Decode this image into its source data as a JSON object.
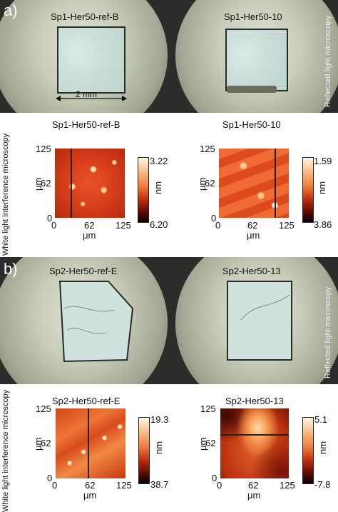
{
  "panel_a": {
    "letter": "a)",
    "micro_left_title": "Sp1-Her50-ref-B",
    "micro_right_title": "Sp1-Her50-10",
    "scale_label": "2 mm",
    "reflected_label": "Reflected light microscopy",
    "wli_label": "White light interference microscopy",
    "heat_left": {
      "title": "Sp1-Her50-ref-B",
      "cbar_top": "3.22",
      "cbar_bottom": "6.20",
      "cbar_unit": "nm"
    },
    "heat_right": {
      "title": "Sp1-Her50-10",
      "cbar_top": "1.59",
      "cbar_bottom": "3.86",
      "cbar_unit": "nm"
    }
  },
  "panel_b": {
    "letter": "b)",
    "micro_left_title": "Sp2-Her50-ref-E",
    "micro_right_title": "Sp2-Her50-13",
    "reflected_label": "Reflected light microscopy",
    "wli_label": "White light interference microscopy",
    "heat_left": {
      "title": "Sp2-Her50-ref-E",
      "cbar_top": "19.3",
      "cbar_bottom": "38.7",
      "cbar_unit": "nm"
    },
    "heat_right": {
      "title": "Sp2-Her50-13",
      "cbar_top": "5.1",
      "cbar_bottom": "-7.8",
      "cbar_unit": "nm"
    }
  },
  "axes": {
    "ticks": [
      "0",
      "62",
      "125"
    ],
    "unit": "μm"
  }
}
